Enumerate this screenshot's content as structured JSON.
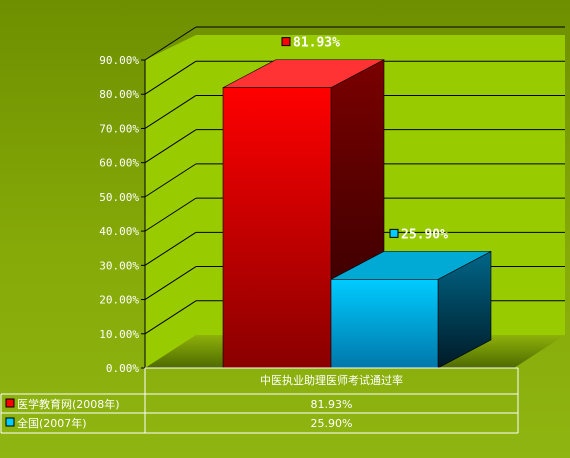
{
  "chart_data": {
    "type": "bar",
    "categories": [
      "中医执业助理医师考试通过率"
    ],
    "series": [
      {
        "name": "医学教育网(2008年)",
        "values": [
          81.93
        ],
        "label": "81.93%",
        "table_value": "81.93%",
        "color": "#ff0000"
      },
      {
        "name": "全国(2007年)",
        "values": [
          25.9
        ],
        "label": "25.90%",
        "table_value": "25.90%",
        "color": "#00ccff"
      }
    ],
    "ylim": [
      0,
      90
    ],
    "yticks": [
      "0.00%",
      "10.00%",
      "20.00%",
      "30.00%",
      "40.00%",
      "50.00%",
      "60.00%",
      "70.00%",
      "80.00%",
      "90.00%"
    ],
    "grid": true,
    "three_d": true,
    "legend": "data-table"
  }
}
